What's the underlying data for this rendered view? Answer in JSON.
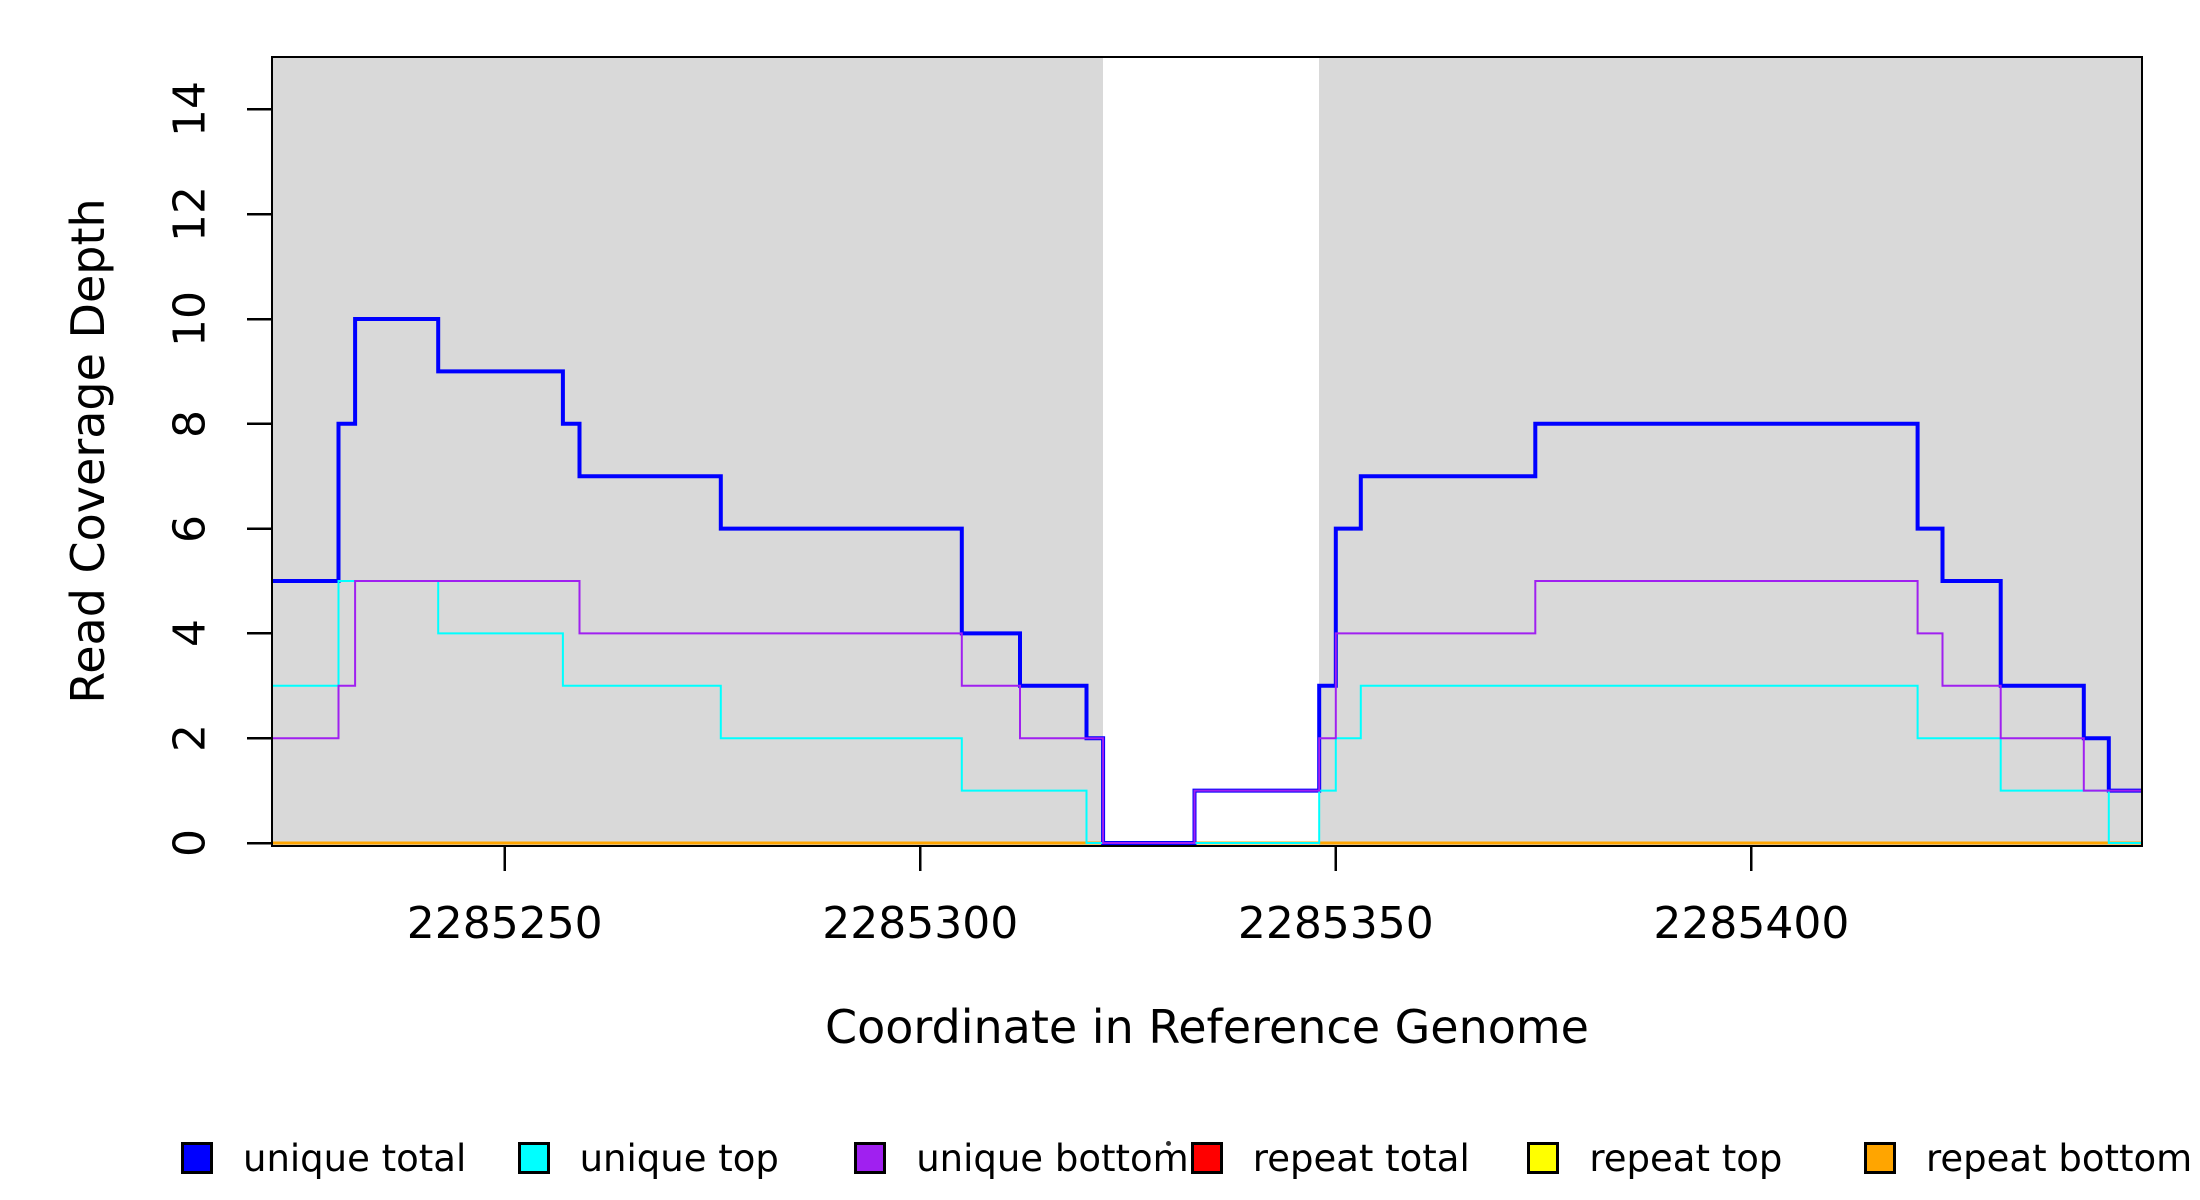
{
  "figure": {
    "xlabel": "Coordinate in Reference Genome",
    "ylabel": "Read Coverage Depth"
  },
  "chart_data": {
    "type": "line",
    "subtype": "step",
    "title": "",
    "xlabel": "Coordinate in Reference Genome",
    "ylabel": "Read Coverage Depth",
    "xlim": [
      2285222,
      2285447
    ],
    "ylim": [
      0,
      15
    ],
    "x_ticks": [
      2285250,
      2285300,
      2285350,
      2285400
    ],
    "y_ticks": [
      0,
      2,
      4,
      6,
      8,
      10,
      12,
      14
    ],
    "grid": false,
    "legend_position": "bottom",
    "plot_background": "#FFFFFF",
    "shaded_region_color": "#D9D9D9",
    "shaded_regions": [
      {
        "x0": 2285222,
        "x1": 2285322
      },
      {
        "x0": 2285348,
        "x1": 2285447
      }
    ],
    "series": [
      {
        "name": "unique total",
        "color": "#0000FF",
        "width": 4,
        "steps": [
          [
            2285222,
            5
          ],
          [
            2285230,
            8
          ],
          [
            2285232,
            10
          ],
          [
            2285242,
            9
          ],
          [
            2285257,
            8
          ],
          [
            2285259,
            7
          ],
          [
            2285276,
            6
          ],
          [
            2285305,
            4
          ],
          [
            2285312,
            3
          ],
          [
            2285320,
            2
          ],
          [
            2285322,
            0
          ],
          [
            2285333,
            1
          ],
          [
            2285348,
            3
          ],
          [
            2285350,
            6
          ],
          [
            2285353,
            7
          ],
          [
            2285374,
            8
          ],
          [
            2285420,
            6
          ],
          [
            2285423,
            5
          ],
          [
            2285430,
            3
          ],
          [
            2285440,
            2
          ],
          [
            2285443,
            1
          ]
        ]
      },
      {
        "name": "unique top",
        "color": "#00FFFF",
        "width": 2,
        "steps": [
          [
            2285222,
            3
          ],
          [
            2285230,
            5
          ],
          [
            2285242,
            4
          ],
          [
            2285257,
            3
          ],
          [
            2285276,
            2
          ],
          [
            2285305,
            1
          ],
          [
            2285320,
            0
          ],
          [
            2285348,
            1
          ],
          [
            2285350,
            2
          ],
          [
            2285353,
            3
          ],
          [
            2285420,
            2
          ],
          [
            2285430,
            1
          ],
          [
            2285443,
            0
          ]
        ]
      },
      {
        "name": "unique bottom",
        "color": "#A020F0",
        "width": 2,
        "steps": [
          [
            2285222,
            2
          ],
          [
            2285230,
            3
          ],
          [
            2285232,
            5
          ],
          [
            2285259,
            4
          ],
          [
            2285305,
            3
          ],
          [
            2285312,
            2
          ],
          [
            2285322,
            0
          ],
          [
            2285333,
            1
          ],
          [
            2285348,
            2
          ],
          [
            2285350,
            4
          ],
          [
            2285374,
            5
          ],
          [
            2285420,
            4
          ],
          [
            2285423,
            3
          ],
          [
            2285430,
            2
          ],
          [
            2285440,
            1
          ]
        ]
      },
      {
        "name": "repeat total",
        "color": "#FF0000",
        "width": 2,
        "steps": [
          [
            2285222,
            0
          ]
        ]
      },
      {
        "name": "repeat top",
        "color": "#FFFF00",
        "width": 2,
        "steps": [
          [
            2285222,
            0
          ]
        ]
      },
      {
        "name": "repeat bottom",
        "color": "#FFA500",
        "width": 3,
        "steps": [
          [
            2285222,
            0
          ]
        ]
      }
    ],
    "draw_order": [
      "repeat total",
      "repeat top",
      "repeat bottom",
      "unique total",
      "unique top",
      "unique bottom"
    ],
    "legend_entries": [
      {
        "label": "unique total",
        "color": "#0000FF"
      },
      {
        "label": "unique top",
        "color": "#00FFFF"
      },
      {
        "label": "unique bottom",
        "color": "#A020F0"
      },
      {
        "label": "repeat total",
        "color": "#FF0000"
      },
      {
        "label": "repeat top",
        "color": "#FFFF00"
      },
      {
        "label": "repeat bottom",
        "color": "#FFA500"
      }
    ]
  }
}
